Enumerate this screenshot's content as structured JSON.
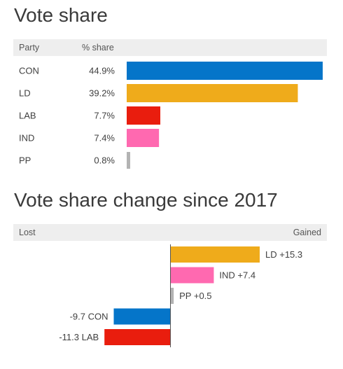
{
  "chart_data": [
    {
      "type": "bar",
      "title": "Vote share",
      "headers": {
        "category": "Party",
        "value": "% share"
      },
      "categories": [
        "CON",
        "LD",
        "LAB",
        "IND",
        "PP"
      ],
      "values": [
        44.9,
        39.2,
        7.7,
        7.4,
        0.8
      ],
      "value_labels": [
        "44.9%",
        "39.2%",
        "7.7%",
        "7.4%",
        "0.8%"
      ],
      "colors": [
        "#0575c9",
        "#efab1b",
        "#e91d0e",
        "#ff69b0",
        "#b3b3b3"
      ],
      "xlim": [
        0,
        44.9
      ]
    },
    {
      "type": "bar",
      "title": "Vote share change since 2017",
      "headers": {
        "left": "Lost",
        "right": "Gained"
      },
      "categories": [
        "LD",
        "IND",
        "PP",
        "CON",
        "LAB"
      ],
      "values": [
        15.3,
        7.4,
        0.5,
        -9.7,
        -11.3
      ],
      "value_labels": [
        "+15.3",
        "+7.4",
        "+0.5",
        "-9.7",
        "-11.3"
      ],
      "colors": [
        "#efab1b",
        "#ff69b0",
        "#b3b3b3",
        "#0575c9",
        "#e91d0e"
      ],
      "xlim": [
        -15.3,
        15.3
      ]
    }
  ]
}
